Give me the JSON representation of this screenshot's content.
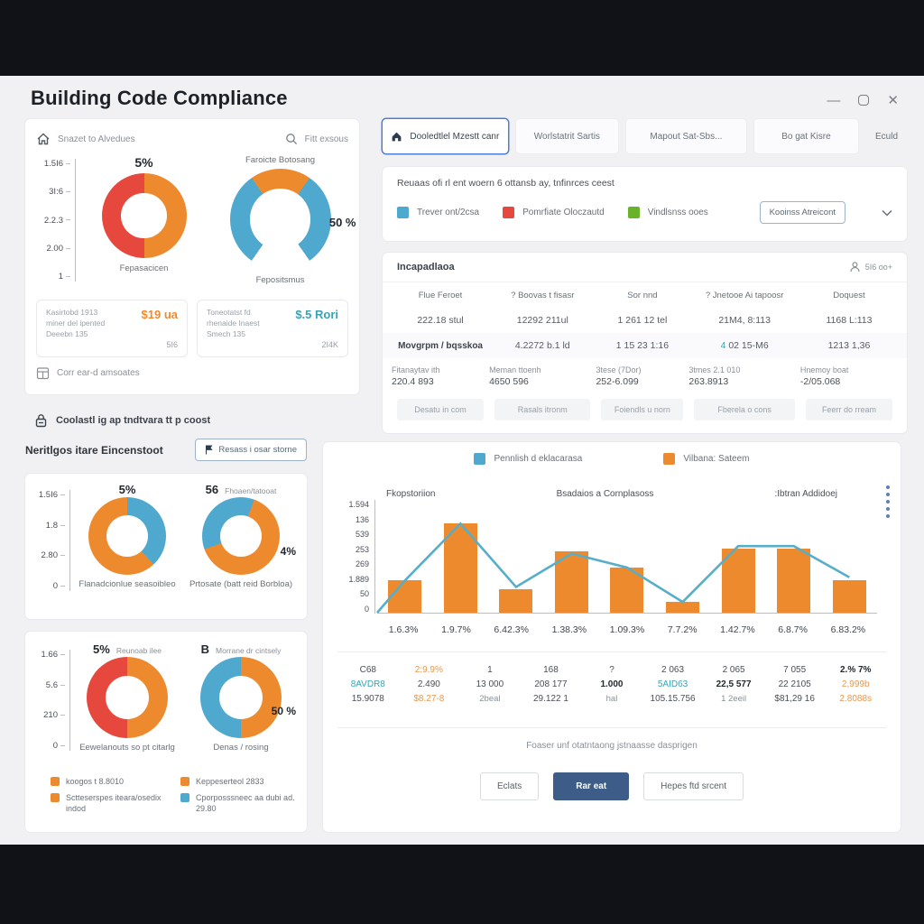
{
  "colors": {
    "orange": "#ee8a2e",
    "red": "#e6483d",
    "blue": "#4fa8cd",
    "teal": "#3aa3b2",
    "green": "#68b32a",
    "primary": "#3d5c87",
    "tab_active_border": "#4c7fd0"
  },
  "window": {
    "title": "Building Code Compliance",
    "minimize": "—",
    "close": "✕"
  },
  "left": {
    "overview": {
      "breadcrumb": "Snazet to Alvedues",
      "search_label": "Fitt exsous",
      "axis": [
        "1.5I6",
        "3I:6",
        "2.2.3",
        "2.00",
        "1"
      ],
      "donut1": {
        "value": "5%",
        "caption": "Fepasacicen"
      },
      "gauge": {
        "title": "Faroicte Botosang",
        "value": "50 %",
        "caption": "Fepositsmus"
      },
      "cards": [
        {
          "l1": "Kasirtobd 1913",
          "l2": "miner del ipented",
          "l3": "Deeebn 135",
          "value": "$19 ua",
          "sub": "5I6"
        },
        {
          "l1": "Toneotatst fd",
          "l2": "rhenaide Inaest",
          "l3": "Smech 135",
          "value": "$.5 Rori",
          "sub": "2I4K"
        }
      ],
      "footer": "Corr ear-d amsoates"
    },
    "lock_note": "Coolastl ig ap tndtvara tt p coost",
    "section": {
      "title": "Neritlgos itare Eincenstoot",
      "button": "Resass i osar storne"
    },
    "panel2": {
      "axis": [
        "1.5I6",
        "1.8",
        "2.80",
        "0"
      ],
      "donut1": {
        "value": "5%",
        "caption": "Flanadcionlue seasoibleo"
      },
      "donut2": {
        "value": "56",
        "note": "Fhoaen/tatooat",
        "pct": "4%",
        "caption": "Prtosate (batt reid Borbloa)"
      }
    },
    "panel3": {
      "axis": [
        "1.66",
        "5.6",
        "210",
        "0"
      ],
      "donut1": {
        "value": "5%",
        "note": "Reunoab ilee",
        "caption": "Eewelanouts so pt citarlg"
      },
      "donut2": {
        "value": "B",
        "note": "Morrane dr cintsely",
        "pct": "50 %",
        "caption": "Denas / rosing"
      },
      "legend": [
        {
          "color": "#ee8a2e",
          "label": "koogos t 8.8010"
        },
        {
          "color": "#ee8a2e",
          "label": "Sctteserspes iteara/osedix indod"
        },
        {
          "color": "#ee8a2e",
          "label": "Keppeserteol 2833"
        },
        {
          "color": "#4fa8cd",
          "label": "Cporposssneec aa dubi ad. 29.80"
        }
      ]
    }
  },
  "tabs": [
    {
      "label": "Dooledtlel Mzestt canr"
    },
    {
      "label": "Worlstatrit Sartis"
    },
    {
      "label": "Mapout Sat-Sbs..."
    },
    {
      "label": "Bo gat Kisre"
    },
    {
      "label": "Eculd"
    }
  ],
  "filter": {
    "title": "Reuaas ofi rl ent woern 6 ottansb ay, tnfinrces ceest",
    "legend": [
      {
        "color": "#4fa8cd",
        "label": "Trever ont/2csa"
      },
      {
        "color": "#e6483d",
        "label": "Pomrfiate Oloczautd"
      },
      {
        "color": "#68b32a",
        "label": "Vindlsnss ooes"
      }
    ],
    "button": "Kooinss Atreicont"
  },
  "table": {
    "title": "Incapadlaoa",
    "meta": "5I6 oo+",
    "headers": [
      "Flue Feroet",
      "? Boovas t fisasr",
      "Sor nnd",
      "? Jnetooe Ai tapoosr",
      "Doquest"
    ],
    "row1": [
      "222.18 stul",
      "12292 211ul",
      "1 261 12 tel",
      "21M4, 8:113",
      "1168 L:113"
    ],
    "row2": [
      "Movgrpm / bqsskoa",
      "4.2272 b.1 ld",
      "1 15 23 1:16",
      "4 02 15-M6",
      "1213 1,36"
    ],
    "row3": [
      {
        "label": "Fitanaytav ith",
        "value": "220.4 893"
      },
      {
        "label": "Meman ttoenh",
        "value": "4650 596"
      },
      {
        "label": "3tese (7Dor)",
        "value": "252-6.099"
      },
      {
        "label": "3tmes 2.1 010",
        "value": "263.8913"
      },
      {
        "label": "Hnemoy boat",
        "value": "-2/05.068"
      }
    ],
    "actions": [
      "Desatu in com",
      "Rasals itronm",
      "Foiendls u norn",
      "Fberela o cons",
      "Feerr do rream"
    ]
  },
  "chart_data": {
    "type": "bar",
    "title": "",
    "titles": [
      "Fkopstoriion",
      "Bsadaios a Cornplasoss",
      ":Ibtran Addidoej"
    ],
    "legend": [
      {
        "color": "#4fa8cd",
        "label": "Pennlish d eklacarasa",
        "type": "line"
      },
      {
        "color": "#ee8a2e",
        "label": "Vilbana: Sateem",
        "type": "bar"
      }
    ],
    "y_ticks": [
      "1.594",
      "136",
      "539",
      "253",
      "269",
      "1.889",
      "50",
      "0"
    ],
    "categories": [
      "1.6.3%",
      "1.9.7%",
      "6.42.3%",
      "1.38.3%",
      "1.09.3%",
      "7.7.2%",
      "1.42.7%",
      "6.8.7%",
      "6.83.2%"
    ],
    "series": [
      {
        "name": "Vilbana: Sateem",
        "type": "bar",
        "values": [
          30,
          83,
          22,
          57,
          42,
          10,
          60,
          60,
          30
        ]
      },
      {
        "name": "Pennlish d eklacarasa",
        "type": "line",
        "values": [
          30,
          83,
          24,
          55,
          42,
          10,
          62,
          62,
          33
        ]
      }
    ],
    "ylim": [
      0,
      100
    ],
    "grid": false,
    "legend_position": "top",
    "stats": [
      [
        {
          "t": "C68"
        },
        {
          "t": "8AVDR8",
          "c": "teal"
        },
        {
          "t": "15.9078"
        }
      ],
      [
        {
          "t": "2:9.9%",
          "c": "orange"
        },
        {
          "t": "2.490"
        },
        {
          "t": "$8.27-8",
          "c": "orange"
        }
      ],
      [
        {
          "t": "1"
        },
        {
          "t": "13 000"
        },
        {
          "t": "2beal",
          "c": "muted"
        }
      ],
      [
        {
          "t": "168"
        },
        {
          "t": "208 177"
        },
        {
          "t": "29.122 1"
        }
      ],
      [
        {
          "t": "?"
        },
        {
          "t": "1.000",
          "c": "bold"
        },
        {
          "t": "hal",
          "c": "muted"
        }
      ],
      [
        {
          "t": "2 063"
        },
        {
          "t": "5AID63",
          "c": "teal"
        },
        {
          "t": "105.15.756"
        }
      ],
      [
        {
          "t": "2 065"
        },
        {
          "t": "22,5 577",
          "c": "bold"
        },
        {
          "t": "1 2eeil",
          "c": "muted"
        }
      ],
      [
        {
          "t": "7 055"
        },
        {
          "t": "22 2105"
        },
        {
          "t": "$81,29 16"
        }
      ],
      [
        {
          "t": "2.% 7%",
          "c": "bold"
        },
        {
          "t": "2,999b",
          "c": "orange"
        },
        {
          "t": "2.8088s",
          "c": "orange"
        }
      ]
    ],
    "note": "Foaser unf otatntaong jstnaasse dasprigen",
    "buttons": [
      "Eclats",
      "Rar eat",
      "Hepes ftd srcent"
    ]
  }
}
